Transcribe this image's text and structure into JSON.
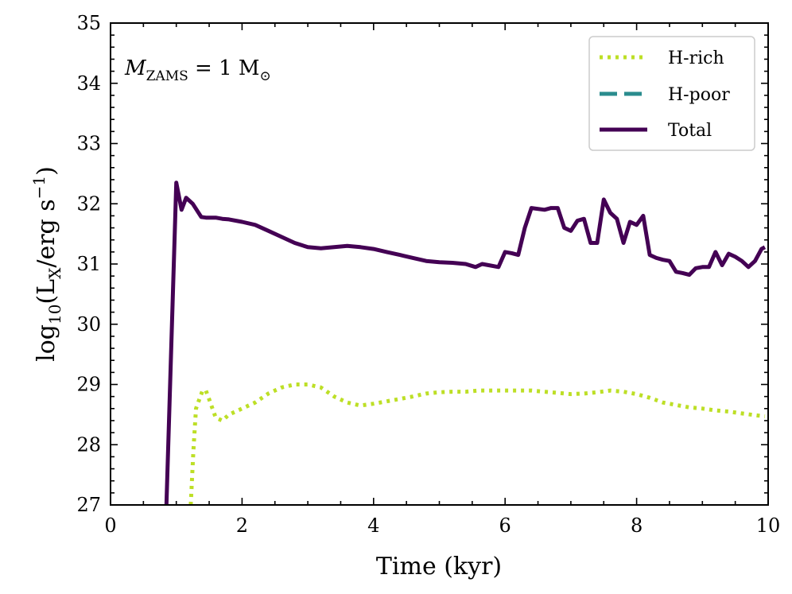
{
  "chart_data": {
    "type": "line",
    "title": "",
    "annotation": {
      "text_main": "M",
      "text_sub": "ZAMS",
      "text_rest": " = 1 M",
      "text_symbol": "⊙"
    },
    "xlabel": "Time (kyr)",
    "ylabel": {
      "prefix": "log",
      "sub": "10",
      "open": "(L",
      "sub2": "X",
      "mid": "/erg s",
      "sup": "−1",
      "close": ")"
    },
    "xlim": [
      0,
      10
    ],
    "ylim": [
      27,
      35
    ],
    "xticks": [
      0,
      2,
      4,
      6,
      8,
      10
    ],
    "yticks": [
      27,
      28,
      29,
      30,
      31,
      32,
      33,
      34,
      35
    ],
    "xtick_labels": [
      "0",
      "2",
      "4",
      "6",
      "8",
      "10"
    ],
    "ytick_labels": [
      "27",
      "28",
      "29",
      "30",
      "31",
      "32",
      "33",
      "34",
      "35"
    ],
    "legend_position": "top-right",
    "series": [
      {
        "name": "H-rich",
        "color": "#bddf26",
        "style": "dotted",
        "x": [
          1.22,
          1.26,
          1.3,
          1.35,
          1.4,
          1.45,
          1.5,
          1.55,
          1.6,
          1.7,
          1.8,
          2.0,
          2.2,
          2.4,
          2.6,
          2.8,
          3.0,
          3.2,
          3.4,
          3.6,
          3.8,
          4.0,
          4.2,
          4.4,
          4.6,
          4.8,
          5.0,
          5.2,
          5.4,
          5.6,
          5.8,
          6.0,
          6.2,
          6.4,
          6.6,
          6.8,
          7.0,
          7.2,
          7.4,
          7.6,
          7.8,
          8.0,
          8.2,
          8.4,
          8.6,
          8.8,
          9.0,
          9.2,
          9.4,
          9.6,
          9.8,
          9.95
        ],
        "y": [
          27.0,
          27.9,
          28.6,
          28.75,
          28.9,
          28.9,
          28.75,
          28.6,
          28.45,
          28.4,
          28.5,
          28.6,
          28.7,
          28.85,
          28.95,
          29.0,
          29.0,
          28.95,
          28.8,
          28.7,
          28.65,
          28.68,
          28.72,
          28.76,
          28.8,
          28.85,
          28.87,
          28.88,
          28.88,
          28.9,
          28.9,
          28.9,
          28.9,
          28.9,
          28.88,
          28.86,
          28.84,
          28.85,
          28.87,
          28.9,
          28.88,
          28.84,
          28.78,
          28.7,
          28.66,
          28.62,
          28.6,
          28.57,
          28.55,
          28.52,
          28.49,
          28.47
        ]
      },
      {
        "name": "H-poor",
        "color": "#2a8c8e",
        "style": "dashed",
        "x": [],
        "y": []
      },
      {
        "name": "Total",
        "color": "#440154",
        "style": "solid",
        "x": [
          0.85,
          1.0,
          1.08,
          1.15,
          1.25,
          1.38,
          1.45,
          1.6,
          1.7,
          1.8,
          2.0,
          2.2,
          2.4,
          2.6,
          2.8,
          3.0,
          3.2,
          3.4,
          3.6,
          3.8,
          4.0,
          4.2,
          4.4,
          4.6,
          4.8,
          5.0,
          5.2,
          5.4,
          5.55,
          5.65,
          5.75,
          5.9,
          6.0,
          6.1,
          6.2,
          6.3,
          6.4,
          6.6,
          6.7,
          6.8,
          6.9,
          7.0,
          7.1,
          7.2,
          7.3,
          7.4,
          7.5,
          7.6,
          7.7,
          7.8,
          7.9,
          8.0,
          8.1,
          8.2,
          8.3,
          8.4,
          8.5,
          8.6,
          8.7,
          8.8,
          8.9,
          9.0,
          9.1,
          9.2,
          9.3,
          9.4,
          9.5,
          9.6,
          9.7,
          9.8,
          9.9,
          9.95
        ],
        "y": [
          27.0,
          32.35,
          31.9,
          32.1,
          32.0,
          31.78,
          31.77,
          31.77,
          31.75,
          31.74,
          31.7,
          31.65,
          31.55,
          31.45,
          31.35,
          31.28,
          31.26,
          31.28,
          31.3,
          31.28,
          31.25,
          31.2,
          31.15,
          31.1,
          31.05,
          31.03,
          31.02,
          31.0,
          30.95,
          31.0,
          30.98,
          30.95,
          31.2,
          31.18,
          31.15,
          31.6,
          31.93,
          31.9,
          31.93,
          31.93,
          31.6,
          31.55,
          31.72,
          31.75,
          31.35,
          31.35,
          32.07,
          31.85,
          31.75,
          31.35,
          31.7,
          31.65,
          31.8,
          31.15,
          31.1,
          31.07,
          31.05,
          30.87,
          30.85,
          30.82,
          30.93,
          30.95,
          30.95,
          31.2,
          30.98,
          31.17,
          31.12,
          31.05,
          30.95,
          31.05,
          31.25,
          31.28
        ]
      }
    ]
  }
}
